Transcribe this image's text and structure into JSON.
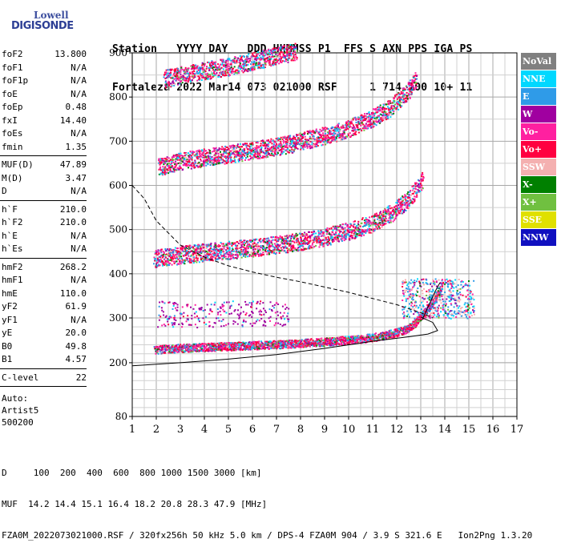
{
  "logo": {
    "line1": "Lowell",
    "line2": "DIGISONDE"
  },
  "header": {
    "line1": "Station   YYYY DAY   DDD HHMMSS P1  FFS S AXN PPS IGA PS",
    "line2": "Fortaleza 2022 Mar14 073 021000 RSF     1 714 100 10+ 11"
  },
  "params": {
    "group1": [
      {
        "name": "foF2",
        "value": "13.800"
      },
      {
        "name": "foF1",
        "value": "N/A"
      },
      {
        "name": "foF1p",
        "value": "N/A"
      },
      {
        "name": "foE",
        "value": "N/A"
      },
      {
        "name": "foEp",
        "value": "0.48"
      },
      {
        "name": "fxI",
        "value": "14.40"
      },
      {
        "name": "foEs",
        "value": "N/A"
      },
      {
        "name": "fmin",
        "value": "1.35"
      }
    ],
    "group2": [
      {
        "name": "MUF(D)",
        "value": "47.89"
      },
      {
        "name": "M(D)",
        "value": "3.47"
      },
      {
        "name": "D",
        "value": "N/A"
      }
    ],
    "group3": [
      {
        "name": "h`F",
        "value": "210.0"
      },
      {
        "name": "h`F2",
        "value": "210.0"
      },
      {
        "name": "h`E",
        "value": "N/A"
      },
      {
        "name": "h`Es",
        "value": "N/A"
      }
    ],
    "group4": [
      {
        "name": "hmF2",
        "value": "268.2"
      },
      {
        "name": "hmF1",
        "value": "N/A"
      },
      {
        "name": "hmE",
        "value": "110.0"
      },
      {
        "name": "yF2",
        "value": "61.9"
      },
      {
        "name": "yF1",
        "value": "N/A"
      },
      {
        "name": "yE",
        "value": "20.0"
      },
      {
        "name": "B0",
        "value": "49.8"
      },
      {
        "name": "B1",
        "value": "4.57"
      }
    ],
    "group5": [
      {
        "name": "C-level",
        "value": "22"
      }
    ],
    "auto": [
      "Auto:",
      "Artist5",
      "500200"
    ]
  },
  "legend": [
    {
      "label": "NoVal",
      "color": "#808080"
    },
    {
      "label": "NNE",
      "color": "#00d8ff"
    },
    {
      "label": "E",
      "color": "#2f9be8"
    },
    {
      "label": "W",
      "color": "#a000a0"
    },
    {
      "label": "Vo-",
      "color": "#ff20a0"
    },
    {
      "label": "Vo+",
      "color": "#ff0040"
    },
    {
      "label": "SSW",
      "color": "#f4b0b0"
    },
    {
      "label": "X-",
      "color": "#008000"
    },
    {
      "label": "X+",
      "color": "#70c040"
    },
    {
      "label": "SSE",
      "color": "#e0e000"
    },
    {
      "label": "NNW",
      "color": "#1010c0"
    }
  ],
  "chart_data": {
    "type": "scatter",
    "title": "",
    "xlabel": "",
    "ylabel": "",
    "xlim": [
      1,
      17
    ],
    "ylim_low": [
      80,
      300
    ],
    "ylim_high": [
      300,
      900
    ],
    "x_ticks": [
      1,
      2,
      3,
      4,
      5,
      6,
      7,
      8,
      9,
      10,
      11,
      12,
      13,
      14,
      15,
      16,
      17
    ],
    "y_ticks": [
      80,
      200,
      300,
      400,
      500,
      600,
      700,
      800,
      900
    ],
    "grid": true,
    "traces": [
      {
        "name": "",
        "points": [
          [
            1.9,
            228
          ],
          [
            3,
            232
          ],
          [
            5,
            236
          ],
          [
            7,
            240
          ],
          [
            9,
            246
          ],
          [
            10.5,
            252
          ],
          [
            11.5,
            260
          ],
          [
            12.3,
            272
          ],
          [
            12.8,
            290
          ],
          [
            13.2,
            315
          ],
          [
            13.6,
            345
          ],
          [
            13.9,
            375
          ]
        ]
      },
      {
        "name": "",
        "points": [
          [
            1.9,
            430
          ],
          [
            3,
            440
          ],
          [
            4.5,
            448
          ],
          [
            6,
            456
          ],
          [
            7.5,
            466
          ],
          [
            9,
            480
          ],
          [
            10,
            494
          ],
          [
            11,
            512
          ],
          [
            11.8,
            536
          ],
          [
            12.4,
            562
          ],
          [
            12.8,
            588
          ],
          [
            13.1,
            612
          ]
        ]
      },
      {
        "name": "",
        "points": [
          [
            2.1,
            638
          ],
          [
            3,
            652
          ],
          [
            4.5,
            664
          ],
          [
            6,
            676
          ],
          [
            7.5,
            690
          ],
          [
            9,
            710
          ],
          [
            10,
            726
          ],
          [
            11,
            750
          ],
          [
            11.6,
            768
          ],
          [
            12.1,
            790
          ],
          [
            12.5,
            815
          ],
          [
            12.8,
            838
          ]
        ]
      },
      {
        "name": "",
        "points": [
          [
            2.3,
            838
          ],
          [
            3.5,
            852
          ],
          [
            5,
            866
          ],
          [
            6.5,
            884
          ],
          [
            7.8,
            900
          ]
        ]
      }
    ],
    "profile_curve": [
      [
        1,
        193
      ],
      [
        3,
        200
      ],
      [
        5,
        208
      ],
      [
        7,
        218
      ],
      [
        9,
        232
      ],
      [
        11,
        248
      ],
      [
        12.5,
        258
      ],
      [
        13.3,
        264
      ],
      [
        13.7,
        272
      ],
      [
        13.5,
        290
      ],
      [
        13,
        302
      ]
    ],
    "muf_dashed": [
      [
        1,
        600
      ],
      [
        1.5,
        570
      ],
      [
        2,
        520
      ],
      [
        3,
        465
      ],
      [
        4,
        438
      ],
      [
        5,
        418
      ],
      [
        6,
        404
      ],
      [
        7,
        392
      ],
      [
        8,
        382
      ],
      [
        9,
        370
      ],
      [
        10,
        358
      ],
      [
        11,
        344
      ],
      [
        12,
        330
      ],
      [
        13,
        312
      ],
      [
        13.5,
        300
      ]
    ]
  },
  "bottom": {
    "line1": "D     100  200  400  600  800 1000 1500 3000 [km]",
    "line2": "MUF  14.2 14.4 15.1 16.4 18.2 20.8 28.3 47.9 [MHz]",
    "line3": "FZA0M_2022073021000.RSF / 320fx256h 50 kHz 5.0 km / DPS-4 FZA0M 904 / 3.9 S 321.6 E   Ion2Png 1.3.20"
  }
}
